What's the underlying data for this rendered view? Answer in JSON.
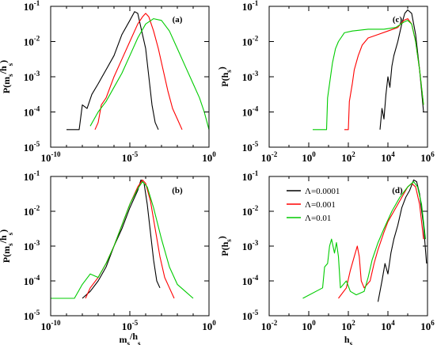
{
  "chart_data": [
    {
      "id": "a",
      "type": "line",
      "panel_label": "(a)",
      "xlabel": "",
      "ylabel_main": "P(m",
      "ylabel_sub1": "s",
      "ylabel_mid": "/h",
      "ylabel_sub2": "s",
      "ylabel_end": ")",
      "x_scale": "log",
      "y_scale": "log",
      "xlim_exp": [
        -10,
        0
      ],
      "ylim_exp": [
        -5,
        -1
      ],
      "x_ticks": [
        -10,
        -5,
        0
      ],
      "y_ticks": [
        -5,
        -4,
        -3,
        -2,
        -1
      ],
      "series": [
        {
          "color": "#000000",
          "points": [
            [
              -9.0,
              -4.5
            ],
            [
              -8.2,
              -4.5
            ],
            [
              -8.0,
              -3.8
            ],
            [
              -7.7,
              -3.9
            ],
            [
              -7.4,
              -3.5
            ],
            [
              -7.0,
              -3.2
            ],
            [
              -6.5,
              -2.8
            ],
            [
              -6.0,
              -2.4
            ],
            [
              -5.5,
              -1.8
            ],
            [
              -5.0,
              -1.4
            ],
            [
              -4.7,
              -1.15
            ],
            [
              -4.5,
              -1.2
            ],
            [
              -4.3,
              -1.6
            ],
            [
              -4.0,
              -2.2
            ],
            [
              -3.8,
              -3.0
            ],
            [
              -3.6,
              -3.8
            ],
            [
              -3.4,
              -4.3
            ],
            [
              -3.2,
              -4.5
            ]
          ]
        },
        {
          "color": "#ff0000",
          "points": [
            [
              -7.2,
              -4.5
            ],
            [
              -7.0,
              -4.3
            ],
            [
              -6.8,
              -3.8
            ],
            [
              -6.5,
              -3.6
            ],
            [
              -6.0,
              -3.0
            ],
            [
              -5.5,
              -2.5
            ],
            [
              -5.0,
              -2.0
            ],
            [
              -4.5,
              -1.5
            ],
            [
              -4.2,
              -1.3
            ],
            [
              -4.0,
              -1.2
            ],
            [
              -3.8,
              -1.3
            ],
            [
              -3.5,
              -1.7
            ],
            [
              -3.2,
              -2.2
            ],
            [
              -2.9,
              -2.8
            ],
            [
              -2.6,
              -3.4
            ],
            [
              -2.3,
              -3.9
            ],
            [
              -2.0,
              -4.2
            ],
            [
              -1.7,
              -4.5
            ]
          ]
        },
        {
          "color": "#00cc00",
          "points": [
            [
              -7.5,
              -4.4
            ],
            [
              -7.0,
              -4.0
            ],
            [
              -6.5,
              -3.7
            ],
            [
              -6.0,
              -3.3
            ],
            [
              -5.5,
              -2.9
            ],
            [
              -5.0,
              -2.4
            ],
            [
              -4.5,
              -1.9
            ],
            [
              -4.0,
              -1.5
            ],
            [
              -3.5,
              -1.35
            ],
            [
              -3.0,
              -1.4
            ],
            [
              -2.5,
              -1.7
            ],
            [
              -2.0,
              -2.2
            ],
            [
              -1.5,
              -2.7
            ],
            [
              -1.0,
              -3.2
            ],
            [
              -0.6,
              -3.6
            ],
            [
              -0.3,
              -4.0
            ],
            [
              0.0,
              -4.5
            ]
          ]
        }
      ]
    },
    {
      "id": "b",
      "type": "line",
      "panel_label": "(b)",
      "xlabel_main": "m",
      "xlabel_sub1": "s",
      "xlabel_mid": "/h",
      "xlabel_sub2": "s",
      "ylabel_main": "P(m",
      "ylabel_sub1": "s",
      "ylabel_mid": "/h",
      "ylabel_sub2": "s",
      "ylabel_end": ")",
      "x_scale": "log",
      "y_scale": "log",
      "xlim_exp": [
        -10,
        0
      ],
      "ylim_exp": [
        -5,
        -1
      ],
      "x_ticks": [
        -10,
        -5,
        0
      ],
      "y_ticks": [
        -5,
        -4,
        -3,
        -2,
        -1
      ],
      "series": [
        {
          "color": "#000000",
          "points": [
            [
              -8.0,
              -4.5
            ],
            [
              -7.5,
              -4.3
            ],
            [
              -7.0,
              -4.0
            ],
            [
              -6.5,
              -3.6
            ],
            [
              -6.0,
              -3.0
            ],
            [
              -5.5,
              -2.5
            ],
            [
              -5.0,
              -1.9
            ],
            [
              -4.5,
              -1.4
            ],
            [
              -4.3,
              -1.1
            ],
            [
              -4.1,
              -1.2
            ],
            [
              -3.9,
              -1.8
            ],
            [
              -3.7,
              -2.6
            ],
            [
              -3.5,
              -3.4
            ],
            [
              -3.3,
              -4.0
            ],
            [
              -3.1,
              -4.2
            ]
          ]
        },
        {
          "color": "#ff0000",
          "points": [
            [
              -7.8,
              -4.5
            ],
            [
              -7.5,
              -4.2
            ],
            [
              -7.0,
              -3.9
            ],
            [
              -6.5,
              -3.5
            ],
            [
              -6.0,
              -3.0
            ],
            [
              -5.5,
              -2.4
            ],
            [
              -5.0,
              -1.8
            ],
            [
              -4.5,
              -1.3
            ],
            [
              -4.2,
              -1.1
            ],
            [
              -4.0,
              -1.2
            ],
            [
              -3.7,
              -1.7
            ],
            [
              -3.4,
              -2.5
            ],
            [
              -3.1,
              -3.3
            ],
            [
              -2.8,
              -3.9
            ],
            [
              -2.5,
              -4.2
            ],
            [
              -2.2,
              -4.5
            ]
          ]
        },
        {
          "color": "#00cc00",
          "points": [
            [
              -10.0,
              -4.5
            ],
            [
              -8.5,
              -4.5
            ],
            [
              -8.0,
              -4.1
            ],
            [
              -7.5,
              -3.8
            ],
            [
              -7.0,
              -3.9
            ],
            [
              -6.5,
              -3.5
            ],
            [
              -6.0,
              -3.0
            ],
            [
              -5.5,
              -2.4
            ],
            [
              -5.0,
              -1.8
            ],
            [
              -4.5,
              -1.35
            ],
            [
              -4.2,
              -1.15
            ],
            [
              -3.9,
              -1.3
            ],
            [
              -3.5,
              -1.9
            ],
            [
              -3.0,
              -2.8
            ],
            [
              -2.5,
              -3.6
            ],
            [
              -2.0,
              -4.1
            ],
            [
              -1.5,
              -4.3
            ],
            [
              -1.0,
              -4.5
            ]
          ]
        }
      ]
    },
    {
      "id": "c",
      "type": "line",
      "panel_label": "(c)",
      "xlabel": "",
      "ylabel_main": "P(h",
      "ylabel_sub1": "s",
      "ylabel_mid": "",
      "ylabel_sub2": "",
      "ylabel_end": ")",
      "x_scale": "log",
      "y_scale": "log",
      "xlim_exp": [
        -2,
        6
      ],
      "ylim_exp": [
        -5,
        -1
      ],
      "x_ticks": [
        -2,
        0,
        2,
        4,
        6
      ],
      "y_ticks": [
        -5,
        -4,
        -3,
        -2,
        -1
      ],
      "series": [
        {
          "color": "#000000",
          "points": [
            [
              3.6,
              -4.5
            ],
            [
              3.7,
              -3.9
            ],
            [
              3.8,
              -4.2
            ],
            [
              3.9,
              -3.5
            ],
            [
              4.0,
              -3.0
            ],
            [
              4.1,
              -3.3
            ],
            [
              4.2,
              -2.7
            ],
            [
              4.3,
              -2.4
            ],
            [
              4.5,
              -2.0
            ],
            [
              4.7,
              -1.5
            ],
            [
              4.85,
              -1.2
            ],
            [
              5.0,
              -1.1
            ],
            [
              5.2,
              -1.2
            ],
            [
              5.4,
              -1.8
            ],
            [
              5.6,
              -2.8
            ],
            [
              5.8,
              -4.0
            ]
          ]
        },
        {
          "color": "#ff0000",
          "points": [
            [
              1.8,
              -4.5
            ],
            [
              2.0,
              -4.5
            ],
            [
              2.05,
              -3.7
            ],
            [
              2.2,
              -3.2
            ],
            [
              2.3,
              -2.8
            ],
            [
              2.4,
              -2.6
            ],
            [
              2.5,
              -2.4
            ],
            [
              2.7,
              -2.1
            ],
            [
              3.0,
              -1.9
            ],
            [
              3.5,
              -1.8
            ],
            [
              4.0,
              -1.7
            ],
            [
              4.5,
              -1.6
            ],
            [
              4.8,
              -1.4
            ],
            [
              5.0,
              -1.35
            ],
            [
              5.2,
              -1.5
            ],
            [
              5.4,
              -2.0
            ],
            [
              5.6,
              -2.8
            ],
            [
              5.8,
              -3.8
            ]
          ]
        },
        {
          "color": "#00cc00",
          "points": [
            [
              0.2,
              -4.5
            ],
            [
              0.9,
              -4.5
            ],
            [
              0.95,
              -3.6
            ],
            [
              1.1,
              -3.0
            ],
            [
              1.2,
              -2.6
            ],
            [
              1.35,
              -2.2
            ],
            [
              1.5,
              -2.0
            ],
            [
              1.8,
              -1.75
            ],
            [
              2.2,
              -1.7
            ],
            [
              3.0,
              -1.65
            ],
            [
              3.8,
              -1.65
            ],
            [
              4.4,
              -1.6
            ],
            [
              4.8,
              -1.45
            ],
            [
              5.0,
              -1.4
            ],
            [
              5.2,
              -1.5
            ],
            [
              5.4,
              -2.0
            ],
            [
              5.6,
              -2.8
            ],
            [
              5.8,
              -3.8
            ]
          ]
        }
      ]
    },
    {
      "id": "d",
      "type": "line",
      "panel_label": "(d)",
      "xlabel_main": "h",
      "xlabel_sub1": "s",
      "xlabel_mid": "",
      "xlabel_sub2": "",
      "ylabel_main": "P(h",
      "ylabel_sub1": "s",
      "ylabel_mid": "",
      "ylabel_sub2": "",
      "ylabel_end": ")",
      "x_scale": "log",
      "y_scale": "log",
      "xlim_exp": [
        -2,
        6
      ],
      "ylim_exp": [
        -5,
        -1
      ],
      "x_ticks": [
        -2,
        0,
        2,
        4,
        6
      ],
      "y_ticks": [
        -5,
        -4,
        -3,
        -2,
        -1
      ],
      "legend": [
        {
          "label": "Λ=0.0001",
          "color": "#000000"
        },
        {
          "label": "Λ=0.001",
          "color": "#ff0000"
        },
        {
          "label": "Λ=0.01",
          "color": "#00cc00"
        }
      ],
      "series": [
        {
          "color": "#000000",
          "points": [
            [
              3.5,
              -4.6
            ],
            [
              3.7,
              -4.0
            ],
            [
              3.85,
              -3.5
            ],
            [
              4.0,
              -3.8
            ],
            [
              4.15,
              -3.2
            ],
            [
              4.3,
              -2.8
            ],
            [
              4.5,
              -2.4
            ],
            [
              4.7,
              -1.9
            ],
            [
              4.9,
              -1.6
            ],
            [
              5.1,
              -1.4
            ],
            [
              5.3,
              -1.1
            ],
            [
              5.45,
              -1.15
            ],
            [
              5.6,
              -1.5
            ],
            [
              5.8,
              -2.4
            ],
            [
              5.95,
              -3.5
            ]
          ]
        },
        {
          "color": "#ff0000",
          "points": [
            [
              1.5,
              -4.5
            ],
            [
              1.9,
              -4.2
            ],
            [
              2.1,
              -3.7
            ],
            [
              2.3,
              -3.3
            ],
            [
              2.45,
              -3.0
            ],
            [
              2.55,
              -3.3
            ],
            [
              2.65,
              -4.0
            ],
            [
              2.8,
              -4.2
            ],
            [
              3.1,
              -4.0
            ],
            [
              3.3,
              -3.5
            ],
            [
              3.5,
              -3.1
            ],
            [
              3.8,
              -2.6
            ],
            [
              4.0,
              -2.3
            ],
            [
              4.4,
              -1.9
            ],
            [
              4.8,
              -1.5
            ],
            [
              5.0,
              -1.3
            ],
            [
              5.2,
              -1.2
            ],
            [
              5.4,
              -1.3
            ],
            [
              5.6,
              -1.8
            ],
            [
              5.8,
              -2.8
            ]
          ]
        },
        {
          "color": "#00cc00",
          "points": [
            [
              -0.3,
              -4.5
            ],
            [
              0.7,
              -4.2
            ],
            [
              0.8,
              -3.6
            ],
            [
              0.95,
              -3.5
            ],
            [
              1.05,
              -3.0
            ],
            [
              1.15,
              -2.8
            ],
            [
              1.3,
              -3.2
            ],
            [
              1.4,
              -2.9
            ],
            [
              1.5,
              -3.3
            ],
            [
              1.6,
              -4.2
            ],
            [
              1.9,
              -4.0
            ],
            [
              2.1,
              -4.3
            ],
            [
              2.4,
              -4.4
            ],
            [
              2.8,
              -4.3
            ],
            [
              3.0,
              -3.9
            ],
            [
              3.2,
              -3.4
            ],
            [
              3.5,
              -2.9
            ],
            [
              3.8,
              -2.5
            ],
            [
              4.2,
              -2.0
            ],
            [
              4.6,
              -1.6
            ],
            [
              5.0,
              -1.3
            ],
            [
              5.3,
              -1.15
            ],
            [
              5.5,
              -1.3
            ],
            [
              5.7,
              -1.8
            ],
            [
              5.9,
              -2.8
            ]
          ]
        }
      ]
    }
  ]
}
